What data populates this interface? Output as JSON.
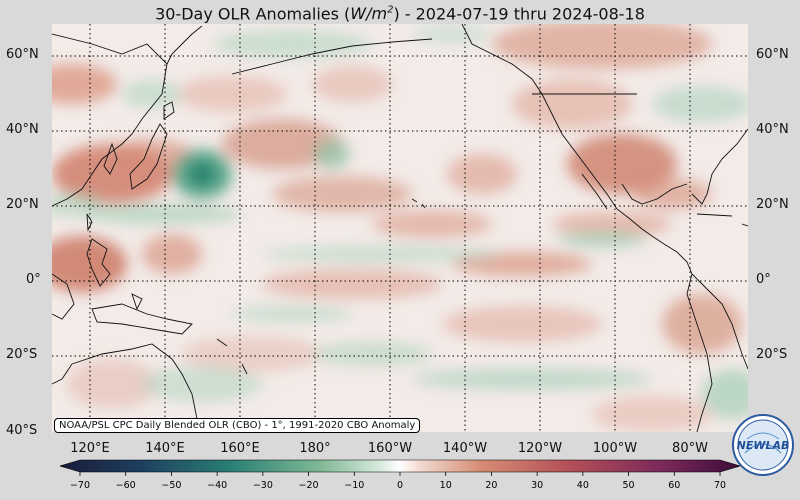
{
  "title": {
    "prefix": "30-Day OLR Anomalies (",
    "unit_base": "W/m",
    "unit_exp": "2",
    "suffix": ") - 2024-07-19 thru 2024-08-18"
  },
  "lat_labels": [
    "60°N",
    "40°N",
    "20°N",
    "0°",
    "20°S",
    "40°S"
  ],
  "lon_labels": [
    "120°E",
    "140°E",
    "160°E",
    "180°",
    "160°W",
    "140°W",
    "120°W",
    "100°W",
    "80°W"
  ],
  "credit": "NOAA/PSL CPC Daily Blended OLR (CBO) - 1°, 1991-2020 CBO Anomaly",
  "colorbar": {
    "ticks": [
      "−70",
      "−60",
      "−50",
      "−40",
      "−30",
      "−20",
      "−10",
      "0",
      "10",
      "20",
      "30",
      "40",
      "50",
      "60",
      "70"
    ],
    "min": -70,
    "max": 70
  },
  "logo": {
    "text": "NEWLAB"
  },
  "colors": {
    "positive": "#c4604a",
    "negative": "#2e8a6e",
    "neutral": "#f3ebe8",
    "background": "#d9d9d9"
  }
}
